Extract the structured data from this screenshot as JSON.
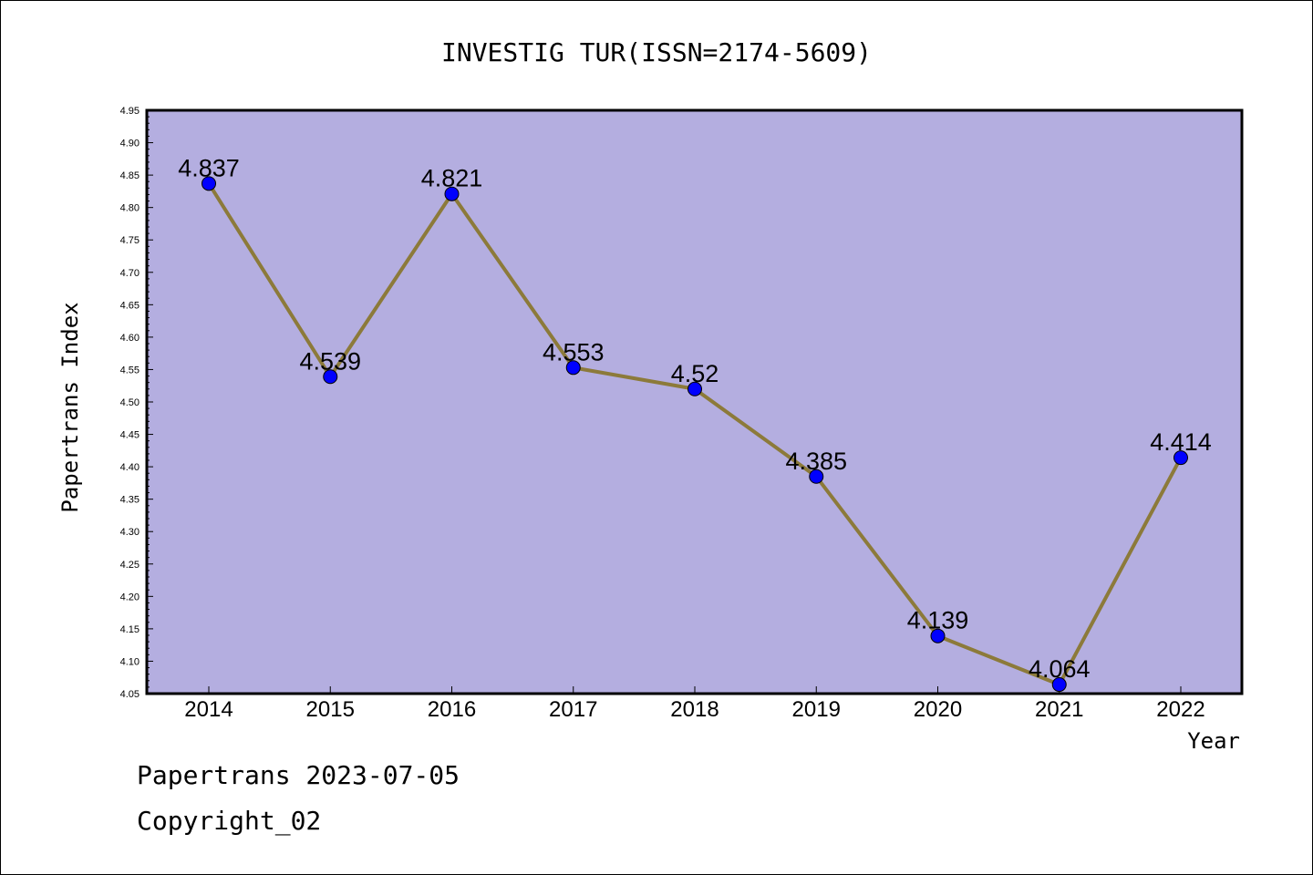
{
  "chart_data": {
    "type": "line",
    "title": "INVESTIG TUR(ISSN=2174-5609)",
    "xlabel": "Year",
    "ylabel": "Papertrans Index",
    "categories": [
      "2014",
      "2015",
      "2016",
      "2017",
      "2018",
      "2019",
      "2020",
      "2021",
      "2022"
    ],
    "series": [
      {
        "values": [
          4.837,
          4.539,
          4.821,
          4.553,
          4.52,
          4.385,
          4.139,
          4.064,
          4.414
        ]
      }
    ],
    "data_labels": [
      "4.837",
      "4.539",
      "4.821",
      "4.553",
      "4.52",
      "4.385",
      "4.139",
      "4.064",
      "4.414"
    ],
    "ylim": [
      4.05,
      4.95
    ],
    "y_ticks": [
      "4.05",
      "4.10",
      "4.15",
      "4.20",
      "4.25",
      "4.30",
      "4.35",
      "4.40",
      "4.45",
      "4.50",
      "4.55",
      "4.60",
      "4.65",
      "4.70",
      "4.75",
      "4.80",
      "4.85",
      "4.90",
      "4.95"
    ],
    "grid": false,
    "colors": {
      "plot_background": "#b4aee0",
      "line": "#8c7a3a",
      "marker": "#0000ff"
    }
  },
  "footer": {
    "date_line": "Papertrans 2023-07-05",
    "copyright": "Copyright_02"
  }
}
